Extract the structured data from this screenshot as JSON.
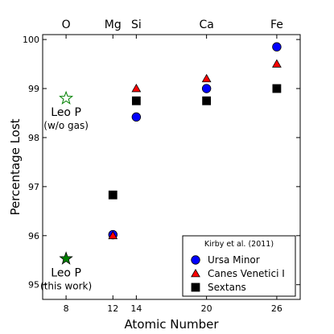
{
  "chart_data": {
    "type": "scatter",
    "xlabel": "Atomic Number",
    "ylabel": "Percentage Lost",
    "xlim": [
      6,
      28
    ],
    "ylim": [
      94.7,
      100.1
    ],
    "xticks": [
      8,
      12,
      14,
      20,
      26
    ],
    "yticks": [
      95,
      96,
      97,
      98,
      99,
      100
    ],
    "top_labels": [
      {
        "x": 8,
        "label": "O"
      },
      {
        "x": 12,
        "label": "Mg"
      },
      {
        "x": 14,
        "label": "Si"
      },
      {
        "x": 20,
        "label": "Ca"
      },
      {
        "x": 26,
        "label": "Fe"
      }
    ],
    "series": [
      {
        "name": "Ursa Minor",
        "marker": "circle",
        "color": "#0000ff",
        "points": [
          {
            "x": 12,
            "y": 96.02
          },
          {
            "x": 14,
            "y": 98.42
          },
          {
            "x": 20,
            "y": 99.0
          },
          {
            "x": 26,
            "y": 99.85
          }
        ]
      },
      {
        "name": "Canes Venetici I",
        "marker": "triangle",
        "color": "#ff0000",
        "points": [
          {
            "x": 12,
            "y": 96.0
          },
          {
            "x": 14,
            "y": 99.0
          },
          {
            "x": 20,
            "y": 99.2
          },
          {
            "x": 26,
            "y": 99.5
          }
        ]
      },
      {
        "name": "Sextans",
        "marker": "square",
        "color": "#000000",
        "points": [
          {
            "x": 12,
            "y": 96.83
          },
          {
            "x": 14,
            "y": 98.75
          },
          {
            "x": 20,
            "y": 98.75
          },
          {
            "x": 26,
            "y": 99.0
          }
        ]
      }
    ],
    "extra_points": [
      {
        "x": 8,
        "y": 98.8,
        "marker": "star-open",
        "color": "#008000",
        "label_line1": "Leo P",
        "label_line2": "(w/o gas)"
      },
      {
        "x": 8,
        "y": 95.53,
        "marker": "star-filled",
        "color": "#008000",
        "label_line1": "Leo P",
        "label_line2": "(this work)"
      }
    ],
    "legend": {
      "title": "Kirby et al. (2011)",
      "placement": "lower-right"
    }
  }
}
